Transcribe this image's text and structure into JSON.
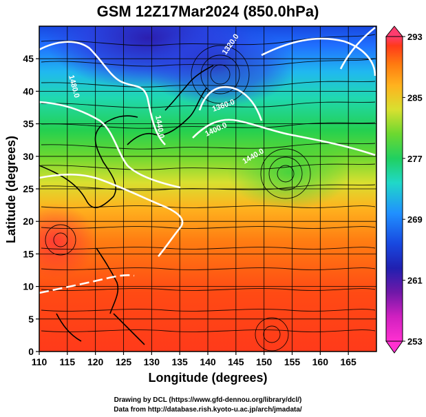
{
  "figure": {
    "title": "GSM 12Z17Mar2024 (850.0hPa)",
    "xlabel": "Longitude (degrees)",
    "ylabel": "Latitude  (degrees)",
    "credits": [
      "Drawing by DCL (https://www.gfd-dennou.org/library/dcl/)",
      "Data from http://database.rish.kyoto-u.ac.jp/arch/jmadata/"
    ]
  },
  "map": {
    "lon_range": [
      110,
      170
    ],
    "lat_range": [
      0,
      50
    ],
    "x_ticks": [
      "110",
      "115",
      "120",
      "125",
      "130",
      "135",
      "140",
      "145",
      "150",
      "155",
      "160",
      "165"
    ],
    "y_ticks": [
      "0",
      "5",
      "10",
      "15",
      "20",
      "25",
      "30",
      "35",
      "40",
      "45"
    ],
    "grid": true,
    "grid_spacing_deg": 5,
    "field": "temperature (K) shaded, wind streamlines, geopotential height contours (white)",
    "colorbar": {
      "labels": [
        "293",
        "285",
        "277",
        "269",
        "261",
        "253"
      ],
      "min": 253,
      "max": 293,
      "colors": [
        "#ff3c6e",
        "#ff3a1a",
        "#ff7a10",
        "#ffb21e",
        "#d8e030",
        "#6cd830",
        "#20d060",
        "#20d8c8",
        "#2090ff",
        "#1848e0",
        "#2020b0",
        "#7018a8",
        "#d020c0",
        "#ff30d0"
      ]
    },
    "contour_labels": [
      "1480.0",
      "1440.0",
      "1360.0",
      "1320.0",
      "1400.0",
      "1440.0"
    ]
  }
}
